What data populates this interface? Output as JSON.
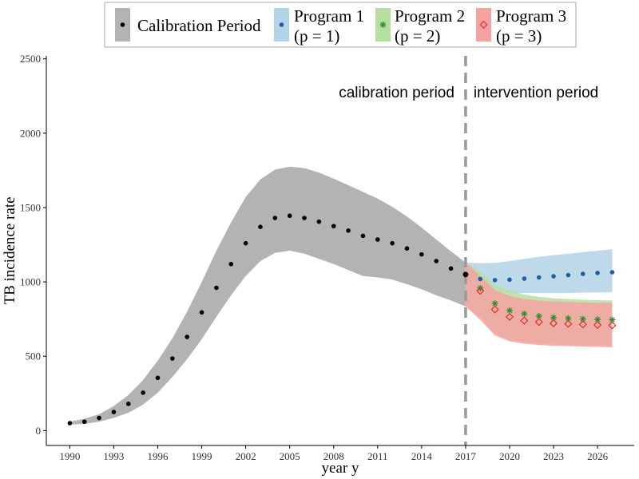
{
  "chart_data": {
    "type": "line",
    "xlabel": "year y",
    "ylabel": "TB incidence rate",
    "xlim": [
      1988.4,
      2028.5
    ],
    "ylim": [
      -100,
      2520
    ],
    "x_ticks": [
      1990,
      1993,
      1996,
      1999,
      2002,
      2005,
      2008,
      2011,
      2014,
      2017,
      2020,
      2023,
      2026
    ],
    "y_ticks": [
      0,
      500,
      1000,
      1500,
      2000,
      2500
    ],
    "grid": false,
    "legend_position": "top",
    "legend": [
      {
        "line1": "Calibration Period",
        "line2": "",
        "marker": "dot",
        "color": "#000000",
        "fill": "#b3b3b3"
      },
      {
        "line1": "Program 1",
        "line2": "(p = 1)",
        "marker": "dot",
        "color": "#1f5fa8",
        "fill": "#b3d3e6"
      },
      {
        "line1": "Program 2",
        "line2": "(p = 2)",
        "marker": "star",
        "color": "#2e8b2e",
        "fill": "#b6dea0"
      },
      {
        "line1": "Program 3",
        "line2": "(p = 3)",
        "marker": "diamond",
        "color": "#e0302a",
        "fill": "#f4a3a3"
      }
    ],
    "annotations": {
      "divider_year": 2017,
      "left_label": "calibration period",
      "right_label": "intervention period"
    },
    "calibration": {
      "x": [
        1990,
        1991,
        1992,
        1993,
        1994,
        1995,
        1996,
        1997,
        1998,
        1999,
        2000,
        2001,
        2002,
        2003,
        2004,
        2005,
        2006,
        2007,
        2008,
        2009,
        2010,
        2011,
        2012,
        2013,
        2014,
        2015,
        2016,
        2017
      ],
      "y": [
        50,
        60,
        85,
        125,
        180,
        255,
        355,
        485,
        630,
        795,
        960,
        1120,
        1260,
        1370,
        1430,
        1445,
        1430,
        1405,
        1375,
        1345,
        1310,
        1285,
        1260,
        1225,
        1185,
        1140,
        1090,
        1050
      ],
      "upper": [
        60,
        80,
        110,
        165,
        240,
        340,
        470,
        620,
        800,
        1000,
        1210,
        1400,
        1570,
        1690,
        1755,
        1775,
        1765,
        1735,
        1695,
        1650,
        1605,
        1560,
        1505,
        1440,
        1365,
        1285,
        1205,
        1130
      ],
      "lower": [
        40,
        45,
        60,
        85,
        120,
        175,
        255,
        360,
        480,
        615,
        765,
        910,
        1040,
        1140,
        1195,
        1210,
        1190,
        1155,
        1120,
        1080,
        1040,
        1030,
        1015,
        985,
        950,
        910,
        875,
        835
      ]
    },
    "series": [
      {
        "name": "Program 1",
        "x": [
          2017,
          2018,
          2019,
          2020,
          2021,
          2022,
          2023,
          2024,
          2025,
          2026,
          2027
        ],
        "y": [
          1050,
          1020,
          1012,
          1015,
          1022,
          1030,
          1038,
          1046,
          1054,
          1060,
          1065
        ],
        "upper": [
          1130,
          1125,
          1128,
          1140,
          1155,
          1168,
          1180,
          1190,
          1200,
          1210,
          1220
        ],
        "lower": [
          835,
          945,
          930,
          925,
          925,
          925,
          925,
          925,
          928,
          930,
          930
        ]
      },
      {
        "name": "Program 2",
        "x": [
          2017,
          2018,
          2019,
          2020,
          2021,
          2022,
          2023,
          2024,
          2025,
          2026,
          2027
        ],
        "y": [
          1050,
          958,
          855,
          808,
          785,
          770,
          760,
          755,
          750,
          747,
          745
        ],
        "upper": [
          1130,
          1070,
          980,
          940,
          915,
          900,
          890,
          885,
          880,
          877,
          875
        ],
        "lower": [
          835,
          760,
          650,
          610,
          595,
          585,
          580,
          578,
          575,
          572,
          570
        ]
      },
      {
        "name": "Program 3",
        "x": [
          2017,
          2018,
          2019,
          2020,
          2021,
          2022,
          2023,
          2024,
          2025,
          2026,
          2027
        ],
        "y": [
          1050,
          940,
          815,
          765,
          740,
          730,
          722,
          718,
          714,
          710,
          708
        ],
        "upper": [
          1130,
          1040,
          945,
          905,
          885,
          875,
          868,
          865,
          862,
          860,
          860
        ],
        "lower": [
          835,
          745,
          640,
          600,
          585,
          575,
          570,
          568,
          565,
          563,
          560
        ]
      }
    ]
  }
}
